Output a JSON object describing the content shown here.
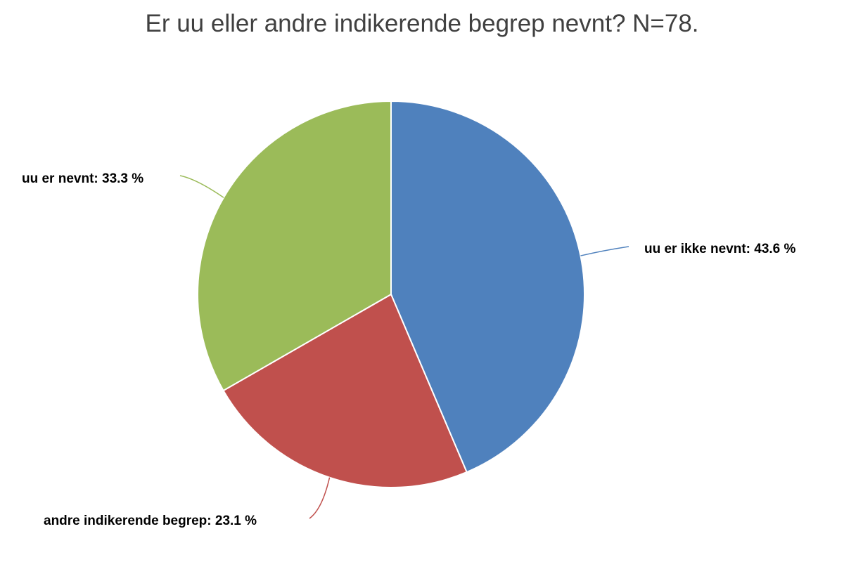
{
  "chart_data": {
    "type": "pie",
    "title": "Er uu eller andre indikerende begrep nevnt? N=78.",
    "slices": [
      {
        "name": "uu er ikke nevnt",
        "value": 43.6,
        "label": "uu er ikke nevnt: 43.6 %",
        "color": "#4F81BD"
      },
      {
        "name": "andre indikerende begrep",
        "value": 23.1,
        "label": "andre indikerende begrep: 23.1 %",
        "color": "#C0504D"
      },
      {
        "name": "uu er nevnt",
        "value": 33.3,
        "label": "uu er nevnt: 33.3 %",
        "color": "#9BBB59"
      }
    ],
    "start": "12 o'clock",
    "direction": "clockwise",
    "legend": "none",
    "data_labels": "outside with leader lines"
  }
}
